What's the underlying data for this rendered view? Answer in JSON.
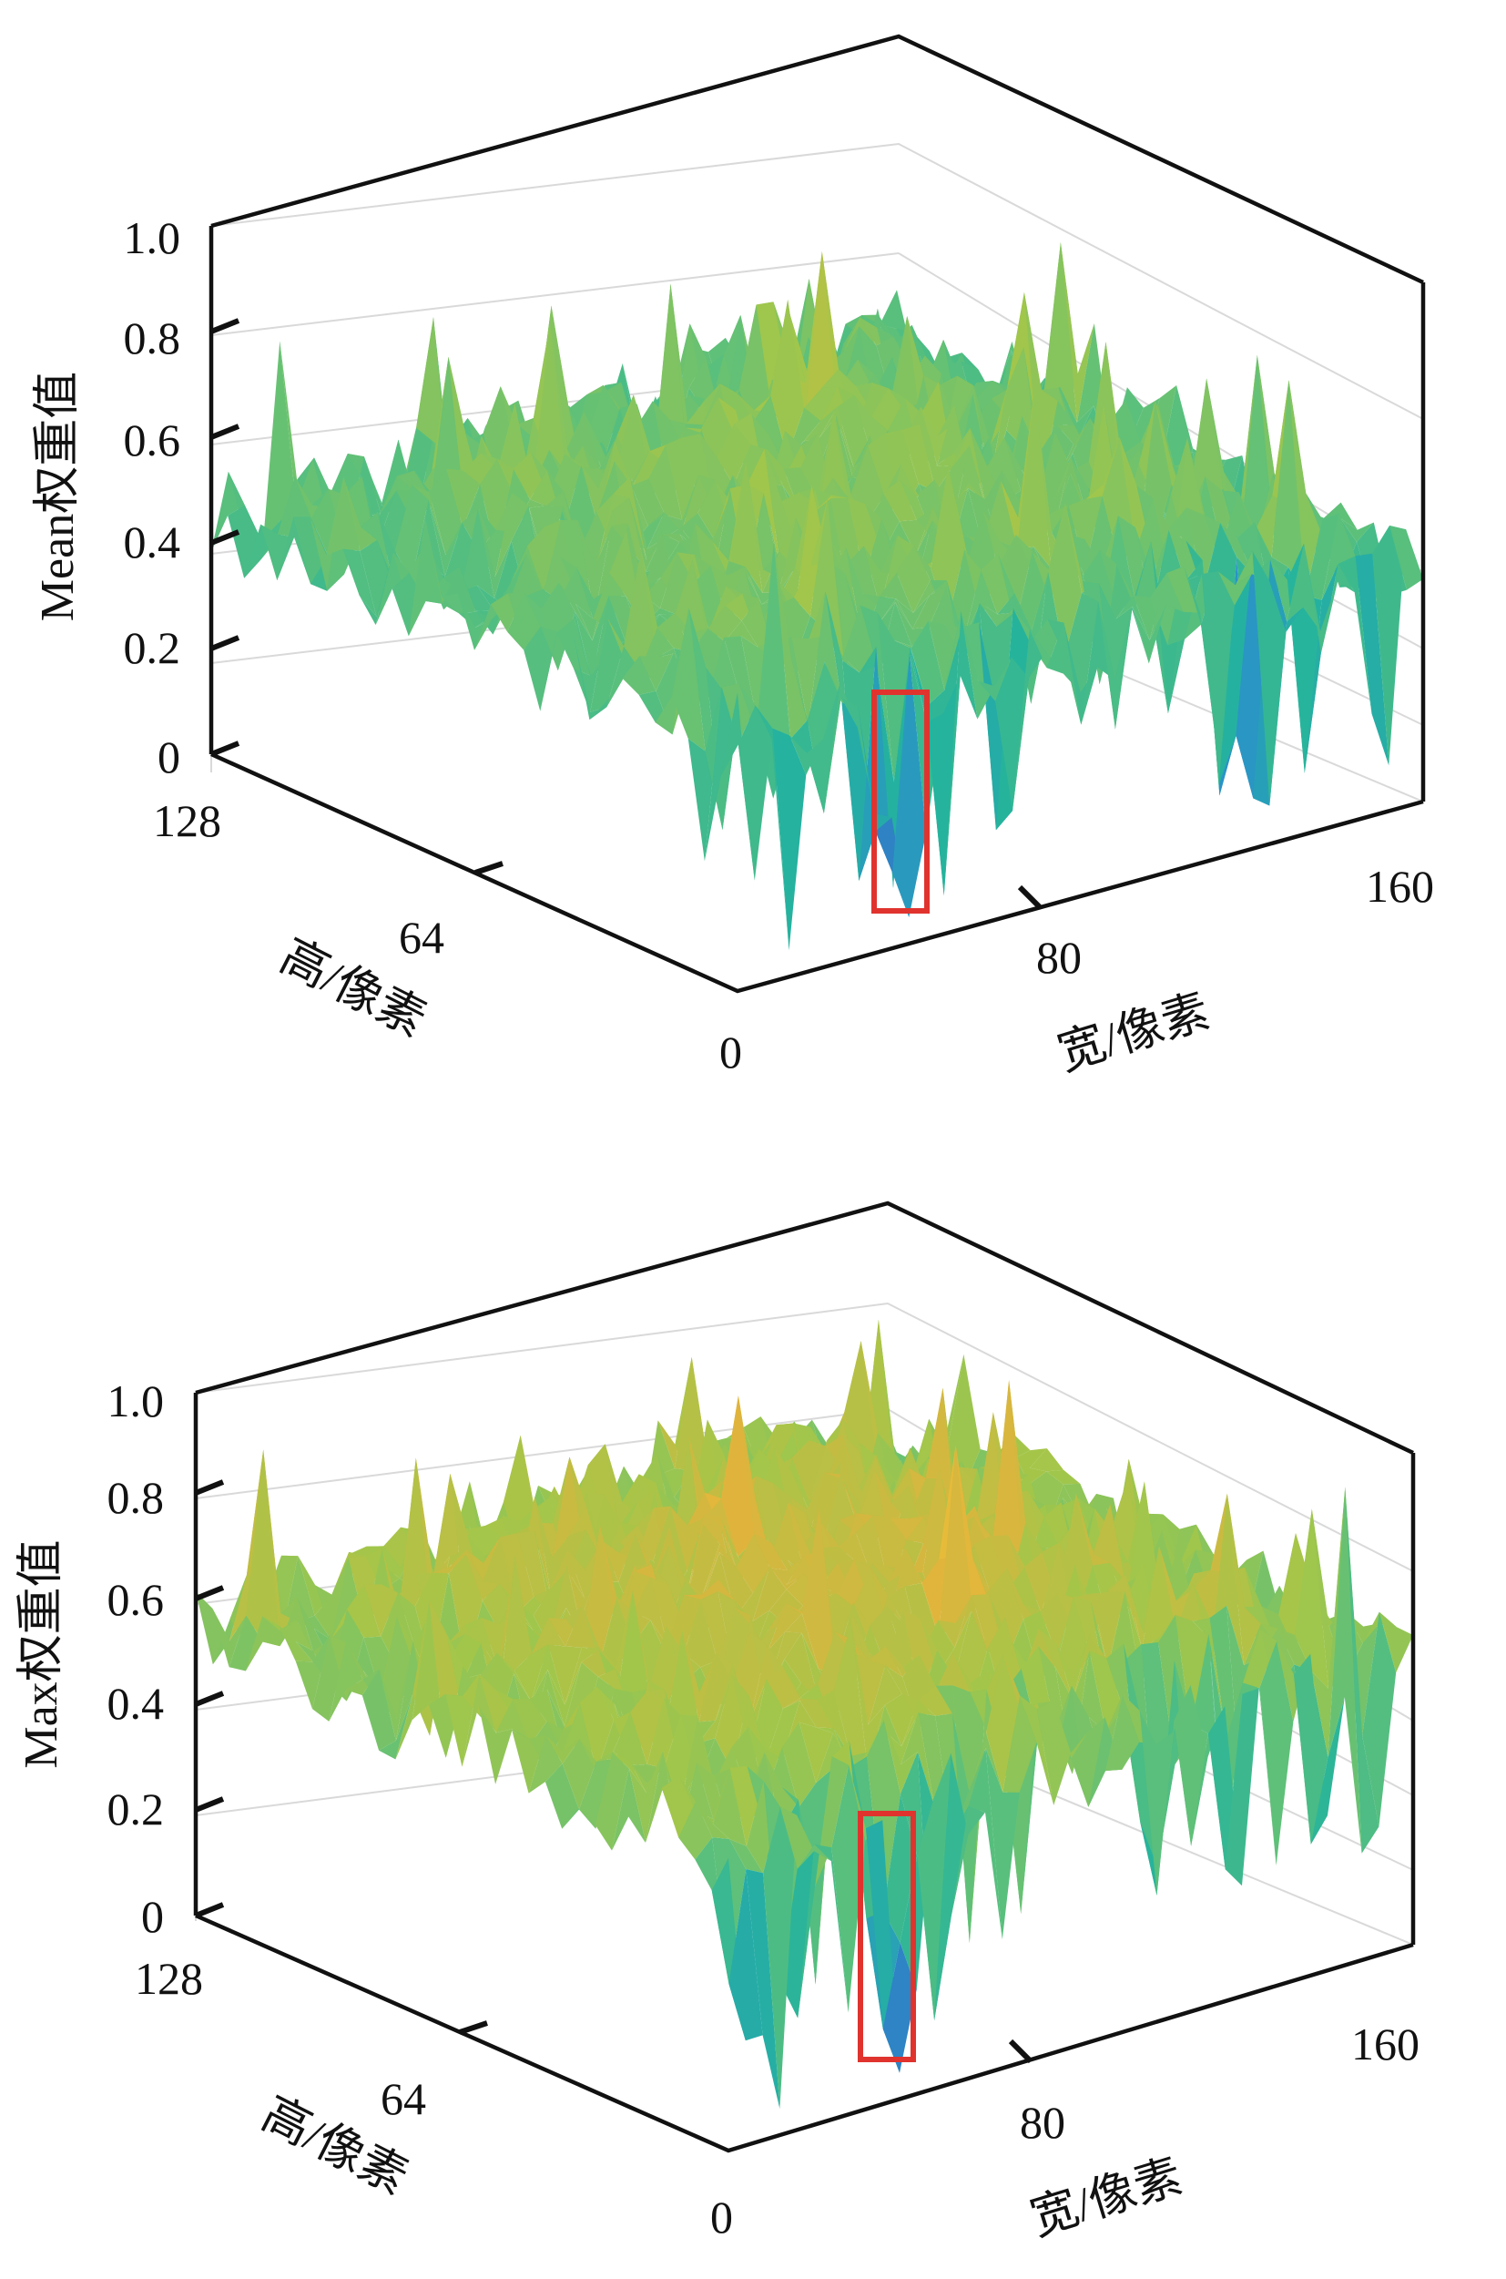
{
  "charts": [
    {
      "id": "mean",
      "chart_data": {
        "type": "surface",
        "title": "",
        "zlabel": "Mean权重值",
        "xlabel": "宽/像素",
        "ylabel": "高/像素",
        "xlim": [
          0,
          160
        ],
        "ylim": [
          0,
          128
        ],
        "zlim": [
          0,
          1.0
        ],
        "x_ticks": [
          "0",
          "80",
          "160"
        ],
        "y_ticks": [
          "64",
          "128"
        ],
        "z_ticks": [
          "0",
          "0.2",
          "0.4",
          "0.6",
          "0.8",
          "1.0"
        ],
        "surface_summary": {
          "typical_value_range": [
            0.35,
            0.65
          ],
          "border_value": 0.45,
          "center_value": 0.55,
          "minimum_value": 0.05,
          "highlighted_dip_region": "red box near x≈38, y≈0"
        },
        "colormap": [
          "#3e4fb8",
          "#2a93c8",
          "#25b39d",
          "#5dc07a",
          "#a3c64a",
          "#e0b43c",
          "#f5c837"
        ]
      }
    },
    {
      "id": "max",
      "chart_data": {
        "type": "surface",
        "title": "",
        "zlabel": "Max权重值",
        "xlabel": "宽/像素",
        "ylabel": "高/像素",
        "xlim": [
          0,
          160
        ],
        "ylim": [
          0,
          128
        ],
        "zlim": [
          0,
          1.0
        ],
        "x_ticks": [
          "0",
          "80",
          "160"
        ],
        "y_ticks": [
          "64",
          "128"
        ],
        "z_ticks": [
          "0",
          "0.2",
          "0.4",
          "0.6",
          "0.8",
          "1.0"
        ],
        "surface_summary": {
          "typical_value_range": [
            0.45,
            0.8
          ],
          "border_value": 0.55,
          "center_value": 0.68,
          "minimum_value": 0.05,
          "highlighted_dip_region": "red box near x≈38, y≈0"
        },
        "colormap": [
          "#3e4fb8",
          "#2a93c8",
          "#25b39d",
          "#5dc07a",
          "#a3c64a",
          "#e0b43c",
          "#f5c837"
        ]
      }
    }
  ],
  "highlight_color": "#e0332e"
}
